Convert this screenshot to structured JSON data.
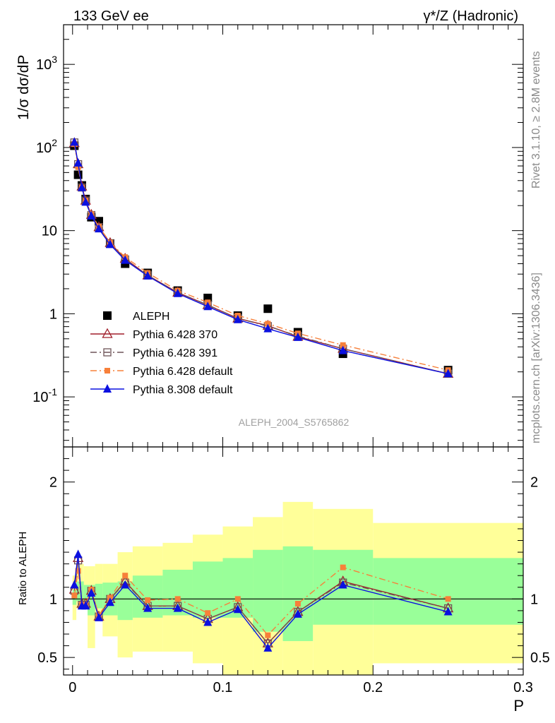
{
  "header": {
    "left": "133 GeV ee",
    "right": "γ*/Z (Hadronic)"
  },
  "side_labels": {
    "rivet": "Rivet 3.1.10, ≥ 2.8M events",
    "mcplots": "mcplots.cern.ch [arXiv:1306.3436]"
  },
  "analysis_id": "ALEPH_2004_S5765862",
  "chart_data": [
    {
      "type": "scatter",
      "panel": "main",
      "ylabel": "1/σ  dσ/dP",
      "yscale": "log",
      "ylim": [
        0.025,
        3000
      ],
      "xlim": [
        -0.006,
        0.3
      ],
      "yticks": [
        "10^-1",
        "1",
        "10",
        "10^2",
        "10^3"
      ],
      "x": [
        0.0012,
        0.0037,
        0.0062,
        0.0087,
        0.0125,
        0.0175,
        0.025,
        0.035,
        0.05,
        0.07,
        0.09,
        0.11,
        0.13,
        0.15,
        0.18,
        0.25
      ],
      "series": [
        {
          "name": "ALEPH",
          "color": "#000000",
          "marker": "square",
          "values": [
            105,
            47,
            35,
            24,
            14.5,
            13,
            7,
            4,
            3.1,
            1.9,
            1.55,
            0.95,
            1.15,
            0.6,
            0.33,
            0.21
          ]
        },
        {
          "name": "Pythia 6.428 370",
          "color": "#a01f2a",
          "marker": "open-triangle",
          "dash": "",
          "values": [
            113,
            63,
            34,
            23,
            15.5,
            11,
            7.1,
            4.6,
            2.9,
            1.8,
            1.27,
            0.88,
            0.72,
            0.53,
            0.38,
            0.19
          ]
        },
        {
          "name": "Pythia 6.428 391",
          "color": "#6e5458",
          "marker": "open-square",
          "dash": "9,4,2,4",
          "values": [
            115,
            63,
            33,
            23,
            15.4,
            11,
            7,
            4.5,
            2.9,
            1.8,
            1.28,
            0.88,
            0.71,
            0.54,
            0.38,
            0.19
          ]
        },
        {
          "name": "Pythia 6.428 default",
          "color": "#f7803a",
          "marker": "square-small",
          "dash": "9,4,2,4",
          "values": [
            110,
            58,
            33,
            23,
            15.8,
            11.2,
            7.2,
            4.8,
            3.1,
            1.9,
            1.37,
            0.95,
            0.76,
            0.58,
            0.42,
            0.21
          ]
        },
        {
          "name": "Pythia 8.308 default",
          "color": "#0b10e0",
          "marker": "triangle",
          "dash": "",
          "values": [
            116,
            65,
            33,
            22,
            15,
            10.5,
            6.8,
            4.4,
            2.85,
            1.75,
            1.22,
            0.85,
            0.66,
            0.52,
            0.36,
            0.19
          ]
        }
      ]
    },
    {
      "type": "line",
      "panel": "ratio",
      "ylabel": "Ratio to ALEPH",
      "xlabel": "P",
      "ylim": [
        0.35,
        2.3
      ],
      "yticks": [
        "0.5",
        "1",
        "2"
      ],
      "xticks": [
        "0",
        "0.1",
        "0.2",
        "0.3"
      ],
      "xlim": [
        -0.006,
        0.3
      ],
      "reference_line": 1,
      "uncertainty_bands": {
        "edges": [
          0,
          0.0025,
          0.005,
          0.0075,
          0.01,
          0.015,
          0.02,
          0.03,
          0.04,
          0.06,
          0.08,
          0.1,
          0.12,
          0.14,
          0.16,
          0.2,
          0.3
        ],
        "outer_color": "#ffff99",
        "inner_color": "#99ff99",
        "outer_low": [
          0.82,
          0.92,
          0.95,
          0.95,
          0.58,
          0.82,
          0.68,
          0.5,
          0.55,
          0.55,
          0.45,
          0.35,
          0.3,
          0.3,
          0.3,
          0.45
        ],
        "outer_high": [
          1.2,
          1.3,
          1.3,
          1.28,
          1.28,
          1.3,
          1.3,
          1.4,
          1.45,
          1.48,
          1.55,
          1.62,
          1.7,
          1.83,
          1.77,
          1.65
        ],
        "inner_low": [
          0.95,
          0.98,
          0.98,
          0.97,
          0.86,
          0.92,
          0.86,
          0.82,
          0.84,
          0.86,
          0.84,
          0.84,
          0.72,
          0.64,
          0.78,
          0.78
        ],
        "inner_high": [
          1.08,
          1.15,
          1.15,
          1.12,
          1.12,
          1.13,
          1.14,
          1.15,
          1.2,
          1.25,
          1.32,
          1.35,
          1.42,
          1.45,
          1.42,
          1.35
        ]
      },
      "x": [
        0.0012,
        0.0037,
        0.0062,
        0.0087,
        0.0125,
        0.0175,
        0.025,
        0.035,
        0.05,
        0.07,
        0.09,
        0.11,
        0.13,
        0.15,
        0.18,
        0.25
      ],
      "series": [
        {
          "name": "Pythia 6.428 370",
          "color": "#a01f2a",
          "marker": "open-triangle",
          "dash": "",
          "values": [
            1.08,
            1.35,
            0.96,
            0.96,
            1.07,
            0.85,
            1.0,
            1.15,
            0.94,
            0.94,
            0.83,
            0.93,
            0.62,
            0.89,
            1.15,
            0.92
          ]
        },
        {
          "name": "Pythia 6.428 391",
          "color": "#6e5458",
          "marker": "open-square",
          "dash": "9,4,2,4",
          "values": [
            1.07,
            1.33,
            0.95,
            0.95,
            1.07,
            0.85,
            1.0,
            1.14,
            0.94,
            0.94,
            0.83,
            0.93,
            0.62,
            0.89,
            1.14,
            0.92
          ]
        },
        {
          "name": "Pythia 6.428 default",
          "color": "#f7803a",
          "marker": "square-small",
          "dash": "9,4,2,4",
          "values": [
            1.03,
            1.24,
            0.95,
            0.95,
            1.08,
            0.86,
            1.01,
            1.2,
            0.99,
            1.0,
            0.88,
            1.0,
            0.69,
            0.96,
            1.27,
            1.0
          ]
        },
        {
          "name": "Pythia 8.308 default",
          "color": "#0b10e0",
          "marker": "triangle",
          "dash": "",
          "values": [
            1.12,
            1.38,
            0.94,
            0.94,
            1.05,
            0.84,
            0.97,
            1.12,
            0.92,
            0.92,
            0.8,
            0.91,
            0.58,
            0.87,
            1.12,
            0.89
          ]
        }
      ]
    }
  ]
}
